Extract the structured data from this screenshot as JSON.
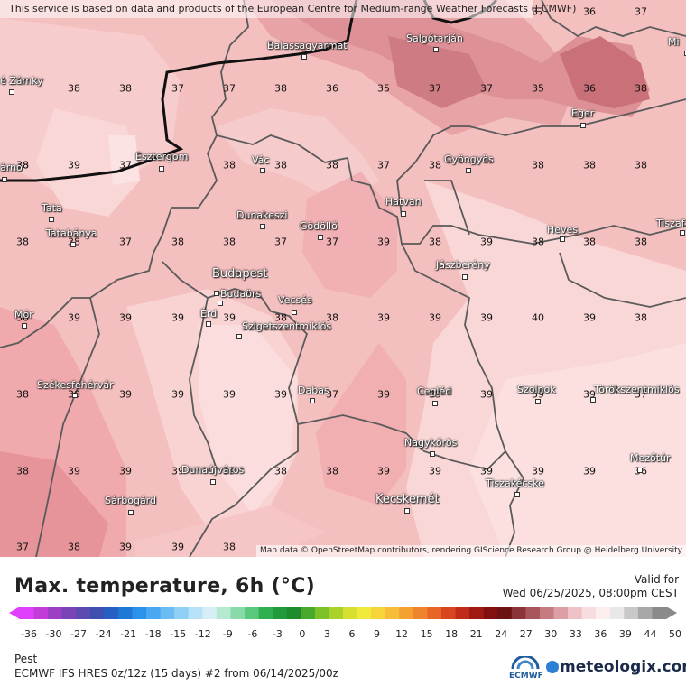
{
  "map": {
    "attribution_top": "This service is based on data and products of the European Centre for Medium-range Weather Forecasts (ECMWF)",
    "attribution_bottom": "Map data © OpenStreetMap contributors, rendering GIScience Research Group @ Heidelberg University",
    "values": [
      {
        "v": "37"
      },
      {
        "v": "36"
      },
      {
        "v": "37"
      },
      {
        "v": "38"
      },
      {
        "v": "38"
      },
      {
        "v": "37"
      },
      {
        "v": "37"
      },
      {
        "v": "38"
      },
      {
        "v": "36"
      },
      {
        "v": "35"
      },
      {
        "v": "37"
      },
      {
        "v": "37"
      },
      {
        "v": "35"
      },
      {
        "v": "36"
      },
      {
        "v": "38"
      },
      {
        "v": "38"
      },
      {
        "v": "39"
      },
      {
        "v": "37"
      },
      {
        "v": "38"
      },
      {
        "v": "38"
      },
      {
        "v": "38"
      },
      {
        "v": "37"
      },
      {
        "v": "38"
      },
      {
        "v": "38"
      },
      {
        "v": "38"
      },
      {
        "v": "38"
      },
      {
        "v": "38"
      },
      {
        "v": "38"
      },
      {
        "v": "38"
      },
      {
        "v": "37"
      },
      {
        "v": "38"
      },
      {
        "v": "38"
      },
      {
        "v": "37"
      },
      {
        "v": "37"
      },
      {
        "v": "39"
      },
      {
        "v": "38"
      },
      {
        "v": "39"
      },
      {
        "v": "38"
      },
      {
        "v": "38"
      },
      {
        "v": "38"
      },
      {
        "v": "38"
      },
      {
        "v": "39"
      },
      {
        "v": "39"
      },
      {
        "v": "39"
      },
      {
        "v": "39"
      },
      {
        "v": "38"
      },
      {
        "v": "38"
      },
      {
        "v": "39"
      },
      {
        "v": "39"
      },
      {
        "v": "39"
      },
      {
        "v": "40"
      },
      {
        "v": "39"
      },
      {
        "v": "38"
      },
      {
        "v": "38"
      },
      {
        "v": "39"
      },
      {
        "v": "39"
      },
      {
        "v": "39"
      },
      {
        "v": "39"
      },
      {
        "v": "39"
      },
      {
        "v": "37"
      },
      {
        "v": "39"
      },
      {
        "v": "39"
      },
      {
        "v": "39"
      },
      {
        "v": "39"
      },
      {
        "v": "39"
      },
      {
        "v": "37"
      },
      {
        "v": "38"
      },
      {
        "v": "39"
      },
      {
        "v": "39"
      },
      {
        "v": "39"
      },
      {
        "v": "39"
      },
      {
        "v": "38"
      },
      {
        "v": "38"
      },
      {
        "v": "39"
      },
      {
        "v": "39"
      },
      {
        "v": "39"
      },
      {
        "v": "39"
      },
      {
        "v": "39"
      },
      {
        "v": "36"
      },
      {
        "v": "37"
      },
      {
        "v": "38"
      },
      {
        "v": "39"
      },
      {
        "v": "39"
      },
      {
        "v": "38"
      }
    ],
    "cities": [
      {
        "name": "Balassagyarmat"
      },
      {
        "name": "Salgótarján"
      },
      {
        "name": "Mi"
      },
      {
        "name": "é Zámky"
      },
      {
        "name": "Eger"
      },
      {
        "name": "árno"
      },
      {
        "name": "Esztergom"
      },
      {
        "name": "Vác"
      },
      {
        "name": "Gyöngyös"
      },
      {
        "name": "Tata"
      },
      {
        "name": "Dunakeszi"
      },
      {
        "name": "Gödöllő"
      },
      {
        "name": "Hatvan"
      },
      {
        "name": "Tatabánya"
      },
      {
        "name": "Heves"
      },
      {
        "name": "Tiszaf"
      },
      {
        "name": "Budapest"
      },
      {
        "name": "Jászberény"
      },
      {
        "name": "Budaörs"
      },
      {
        "name": "Mór"
      },
      {
        "name": "Érd"
      },
      {
        "name": "Vecsés"
      },
      {
        "name": "Szigetszentmiklós"
      },
      {
        "name": "Székesfehérvár"
      },
      {
        "name": "Dabas"
      },
      {
        "name": "Cegléd"
      },
      {
        "name": "Szolnok"
      },
      {
        "name": "Törökszentmiklós"
      },
      {
        "name": "Nagykőrös"
      },
      {
        "name": "Dunaújváros"
      },
      {
        "name": "Mezőtúr"
      },
      {
        "name": "Tiszakécske"
      },
      {
        "name": "Sárbogárd"
      },
      {
        "name": "Kecskemét"
      }
    ]
  },
  "legend": {
    "title": "Max. temperature, 6h (°C)",
    "valid_label": "Valid for",
    "valid_date": "Wed 06/25/2025, 08:00pm CEST",
    "ticks": [
      "-36",
      "-30",
      "-27",
      "-24",
      "-21",
      "-18",
      "-15",
      "-12",
      "-9",
      "-6",
      "-3",
      "0",
      "3",
      "6",
      "9",
      "12",
      "15",
      "18",
      "21",
      "24",
      "27",
      "30",
      "33",
      "36",
      "39",
      "44",
      "50"
    ],
    "colors": [
      "#e040fb",
      "#c23dd8",
      "#9c3fc4",
      "#7a44b8",
      "#5b4ab0",
      "#3e4fb0",
      "#2760c2",
      "#1f78d6",
      "#2a92e8",
      "#4aa8f0",
      "#6cbcf4",
      "#90d0f7",
      "#b8e2f8",
      "#d6eef5",
      "#b5ead0",
      "#8ad9a8",
      "#5bc97d",
      "#2fb050",
      "#219a3a",
      "#1d8a2e",
      "#48a82a",
      "#7cc02a",
      "#abd12b",
      "#d5e02f",
      "#f2ea3a",
      "#f6d43a",
      "#f7bd38",
      "#f5a132",
      "#f0842c",
      "#e86526",
      "#d8461f",
      "#c12b1a",
      "#a01913",
      "#821010",
      "#6b1212",
      "#8a3338",
      "#a8555b",
      "#c47a80",
      "#dc9fa5",
      "#eec2c6",
      "#f7dde0",
      "#fdeff0",
      "#e8e8e8",
      "#c8c8c8",
      "#a8a8a8",
      "#8a8a8a"
    ],
    "location": "Pest",
    "model": "ECMWF IFS HRES 0z/12z (15 days) #2 from  06/14/2025/00z",
    "brand": "meteologix.com",
    "ecmwf": "ECMWF"
  }
}
